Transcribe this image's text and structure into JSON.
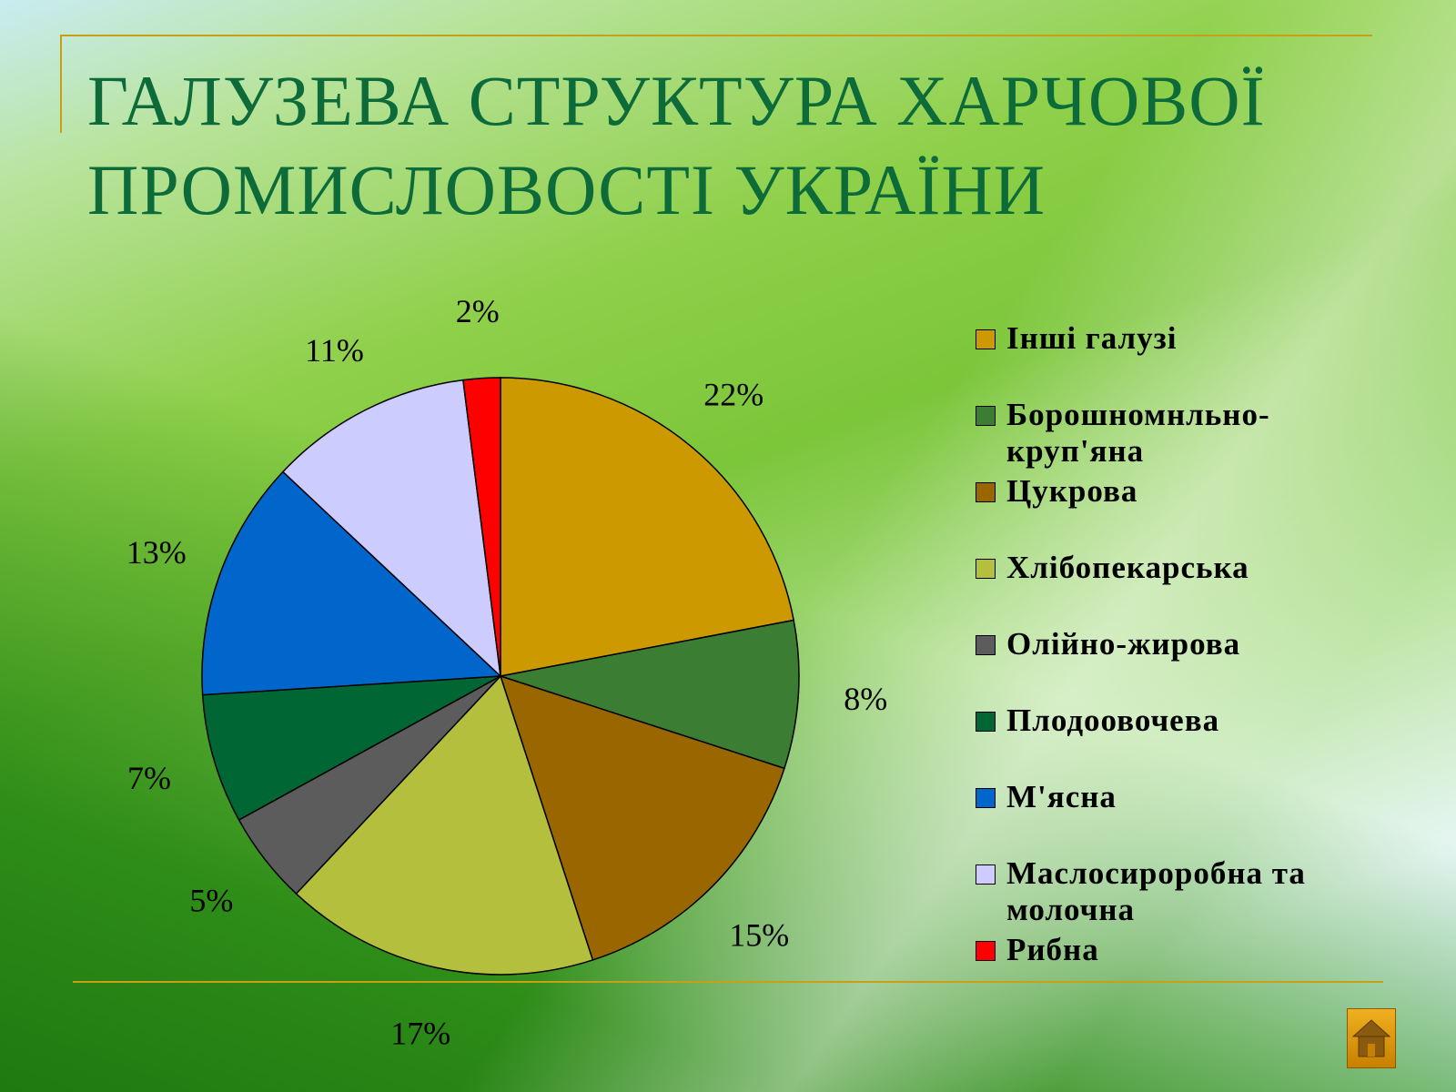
{
  "slide": {
    "title_line1": "ГАЛУЗЕВА СТРУКТУРА ХАРЧОВОЇ",
    "title_line2": "ПРОМИСЛОВОСТІ УКРАЇНИ"
  },
  "colors": {
    "title": "#0d6b3a",
    "rule": "#c8a018",
    "home_button": "#e0a010"
  },
  "chart_data": {
    "type": "pie",
    "title": "",
    "categories": [
      "Інші галузі",
      "Борошномнльно-круп'яна",
      "Цукрова",
      "Хлібопекарська",
      "Олійно-жирова",
      "Плодоовочева",
      "М'ясна",
      "Маслосироробна та молочна",
      "Рибна"
    ],
    "values": [
      22,
      8,
      15,
      17,
      5,
      7,
      13,
      11,
      2
    ],
    "labels": [
      "22%",
      "8%",
      "15%",
      "17%",
      "5%",
      "7%",
      "13%",
      "11%",
      "2%"
    ],
    "colors": [
      "#cc9900",
      "#3a7d33",
      "#996600",
      "#b3bf3d",
      "#5c5c5c",
      "#006633",
      "#0066cc",
      "#ccccff",
      "#ff0000"
    ],
    "legend_position": "right",
    "start": "12 o'clock",
    "direction": "clockwise"
  },
  "icons": {
    "home_button": "home-icon"
  }
}
